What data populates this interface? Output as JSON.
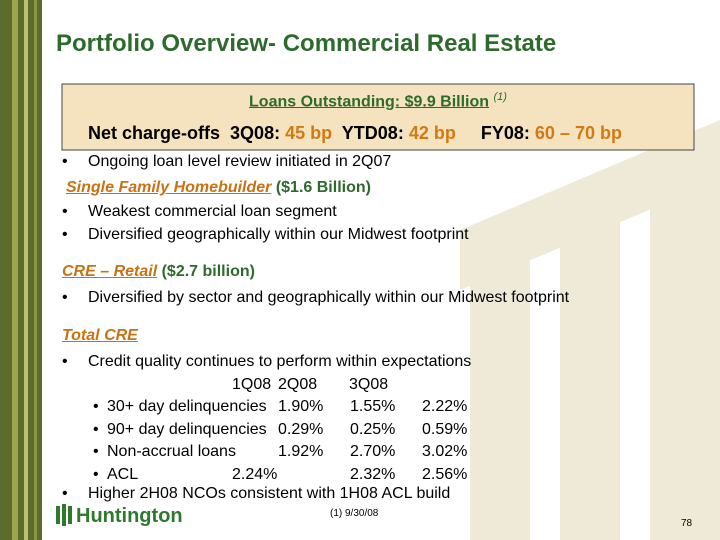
{
  "title": "Portfolio Overview- Commercial Real Estate",
  "box": {
    "heading": "Loans Outstanding: $9.9 Billion",
    "heading_note": "(1)",
    "nco_label": "Net charge-offs",
    "items": [
      {
        "label": "3Q08:",
        "value": "45 bp"
      },
      {
        "label": "YTD08:",
        "value": "42 bp"
      },
      {
        "label": "FY08:",
        "value": "60 – 70 bp"
      }
    ]
  },
  "sections": [
    {
      "bullets": [
        "Ongoing loan level review initiated in 2Q07"
      ]
    },
    {
      "heading": "Single Family Homebuilder",
      "heading_note": "($1.6 Billion)",
      "bullets": [
        "Weakest commercial loan segment",
        "Diversified geographically within our Midwest footprint"
      ]
    },
    {
      "heading": "CRE – Retail",
      "heading_note": "($2.7 billion)",
      "bullets": [
        "Diversified by sector and geographically within our Midwest footprint"
      ]
    },
    {
      "heading": "Total CRE",
      "bullets": [
        "Credit quality continues to perform within expectations"
      ]
    }
  ],
  "table": {
    "columns": [
      "1Q08",
      "2Q08",
      "3Q08"
    ],
    "rows": [
      [
        "30+ day delinquencies",
        "1.90%",
        "1.55%",
        "2.22%"
      ],
      [
        "90+ day delinquencies",
        "0.29%",
        "0.25%",
        "0.59%"
      ],
      [
        "Non-accrual loans",
        "1.92%",
        "2.70%",
        "3.02%"
      ],
      [
        "ACL",
        "2.24%",
        "2.32%",
        "2.56%"
      ]
    ]
  },
  "closing_bullet": "Higher 2H08 NCOs consistent with 1H08 ACL build",
  "footnote": "(1)  9/30/08",
  "logo": "Huntington",
  "page_number": "78"
}
